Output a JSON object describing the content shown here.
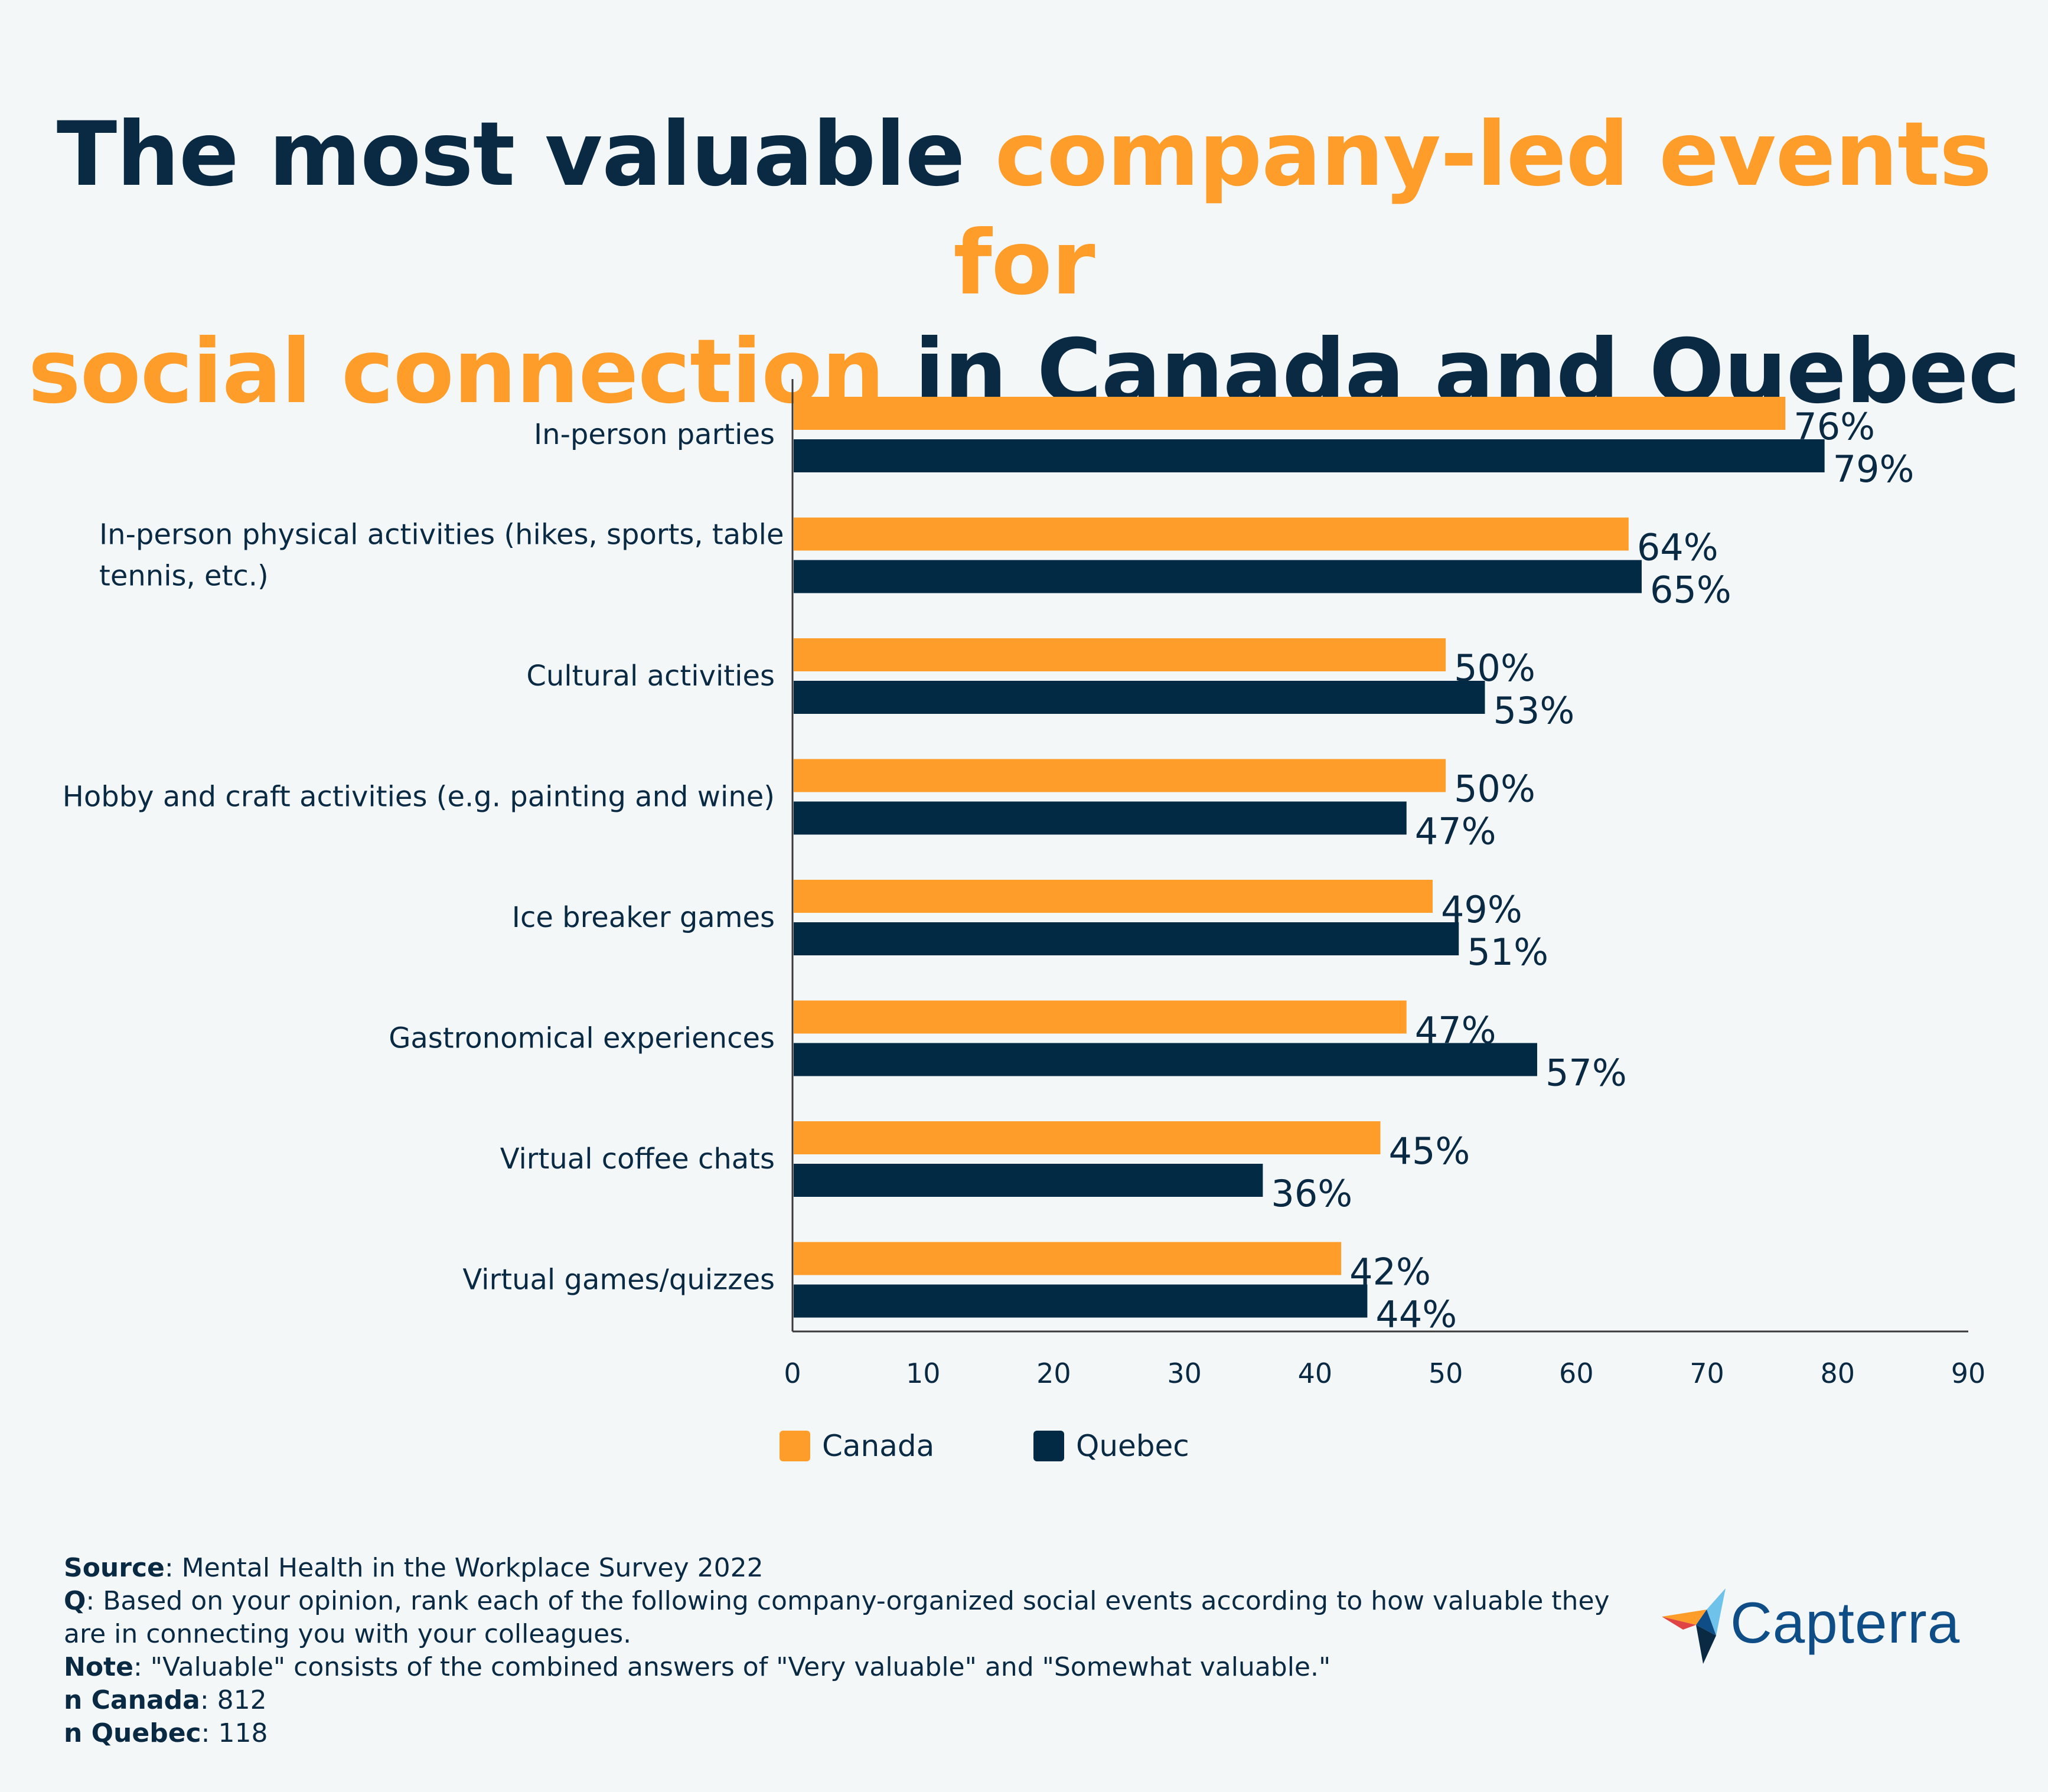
{
  "title": {
    "part1": "The most valuable ",
    "part2": "company-led events for",
    "part3": "social connection",
    "part4": " in Canada and Quebec"
  },
  "colors": {
    "canada": "#ff9d2a",
    "quebec": "#022a44",
    "text": "#0a2a44",
    "background": "#f3f7f8"
  },
  "chart_data": {
    "type": "bar",
    "orientation": "horizontal",
    "categories": [
      [
        "In-person parties"
      ],
      [
        "In-person physical activities (hikes, sports, table",
        "tennis, etc.)"
      ],
      [
        "Cultural activities"
      ],
      [
        "Hobby and craft activities (e.g. painting and wine)"
      ],
      [
        "Ice breaker games"
      ],
      [
        "Gastronomical experiences"
      ],
      [
        "Virtual coffee chats"
      ],
      [
        "Virtual games/quizzes"
      ]
    ],
    "series": [
      {
        "name": "Canada",
        "color": "#ff9d2a",
        "values": [
          76,
          64,
          50,
          50,
          49,
          47,
          45,
          42
        ],
        "labels": [
          "76%",
          "64%",
          "50%",
          "50%",
          "49%",
          "47%",
          "45%",
          "42%"
        ]
      },
      {
        "name": "Quebec",
        "color": "#022a44",
        "values": [
          79,
          65,
          53,
          47,
          51,
          57,
          36,
          44
        ],
        "labels": [
          "79%",
          "65%",
          "53%",
          "47%",
          "51%",
          "57%",
          "36%",
          "44%"
        ]
      }
    ],
    "xlim": [
      0,
      90
    ],
    "xticks": [
      "0",
      "10",
      "20",
      "30",
      "40",
      "50",
      "60",
      "70",
      "80",
      "90"
    ],
    "legend": "bottom-center"
  },
  "legend": {
    "canada": "Canada",
    "quebec": "Quebec"
  },
  "footer": {
    "source_key": "Source",
    "source_val": ": Mental Health in the Workplace Survey 2022",
    "q_key": "Q",
    "q_val": ": Based on your opinion, rank each of the following company-organized social events according to how valuable they are in connecting you with your colleagues.",
    "note_key": "Note",
    "note_val": ": \"Valuable\" consists of the combined answers of \"Very valuable\" and \"Somewhat valuable.\"",
    "n_canada_key": "n Canada",
    "n_canada_val": ": 812",
    "n_quebec_key": "n Quebec",
    "n_quebec_val": ": 118"
  },
  "logo": {
    "text": "Capterra"
  }
}
